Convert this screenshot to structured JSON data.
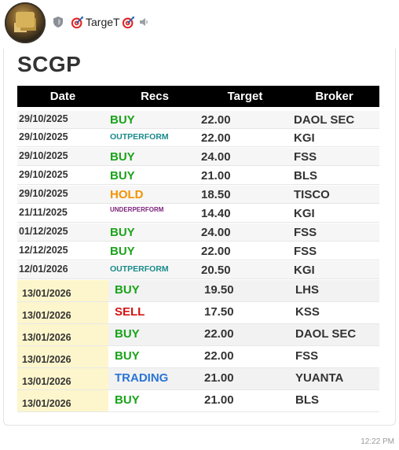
{
  "header": {
    "sender_name": "TargeT",
    "icons": [
      "shield-icon",
      "dart-target-icon",
      "speaker-icon"
    ]
  },
  "message": {
    "title": "SCGP",
    "columns": [
      "Date",
      "Recs",
      "Target",
      "Broker"
    ],
    "rows": [
      {
        "date": "29/10/2025",
        "rec": "BUY",
        "target": "22.00",
        "broker": "DAOL SEC"
      },
      {
        "date": "29/10/2025",
        "rec": "OUTPERFORM",
        "target": "22.00",
        "broker": "KGI"
      },
      {
        "date": "29/10/2025",
        "rec": "BUY",
        "target": "24.00",
        "broker": "FSS"
      },
      {
        "date": "29/10/2025",
        "rec": "BUY",
        "target": "21.00",
        "broker": "BLS"
      },
      {
        "date": "29/10/2025",
        "rec": "HOLD",
        "target": "18.50",
        "broker": "TISCO"
      },
      {
        "date": "21/11/2025",
        "rec": "UNDERPERFORM",
        "target": "14.40",
        "broker": "KGI"
      },
      {
        "date": "01/12/2025",
        "rec": "BUY",
        "target": "24.00",
        "broker": "FSS"
      },
      {
        "date": "12/12/2025",
        "rec": "BUY",
        "target": "22.00",
        "broker": "FSS"
      },
      {
        "date": "12/01/2026",
        "rec": "OUTPERFORM",
        "target": "20.50",
        "broker": "KGI"
      }
    ],
    "recent_rows": [
      {
        "date": "13/01/2026",
        "rec": "BUY",
        "target": "19.50",
        "broker": "LHS"
      },
      {
        "date": "13/01/2026",
        "rec": "SELL",
        "target": "17.50",
        "broker": "KSS"
      },
      {
        "date": "13/01/2026",
        "rec": "BUY",
        "target": "22.00",
        "broker": "DAOL SEC"
      },
      {
        "date": "13/01/2026",
        "rec": "BUY",
        "target": "22.00",
        "broker": "FSS"
      },
      {
        "date": "13/01/2026",
        "rec": "TRADING",
        "target": "21.00",
        "broker": "YUANTA"
      },
      {
        "date": "13/01/2026",
        "rec": "BUY",
        "target": "21.00",
        "broker": "BLS"
      }
    ],
    "timestamp": "12:22 PM"
  },
  "colors": {
    "BUY": "#1aa31a",
    "OUTPERFORM": "#1a8a8a",
    "HOLD": "#f29400",
    "UNDERPERFORM": "#7a1f7a",
    "SELL": "#d41414",
    "TRADING": "#2a74d6",
    "header_bg": "#000000",
    "recent_date_bg": "#fdf6cc"
  }
}
